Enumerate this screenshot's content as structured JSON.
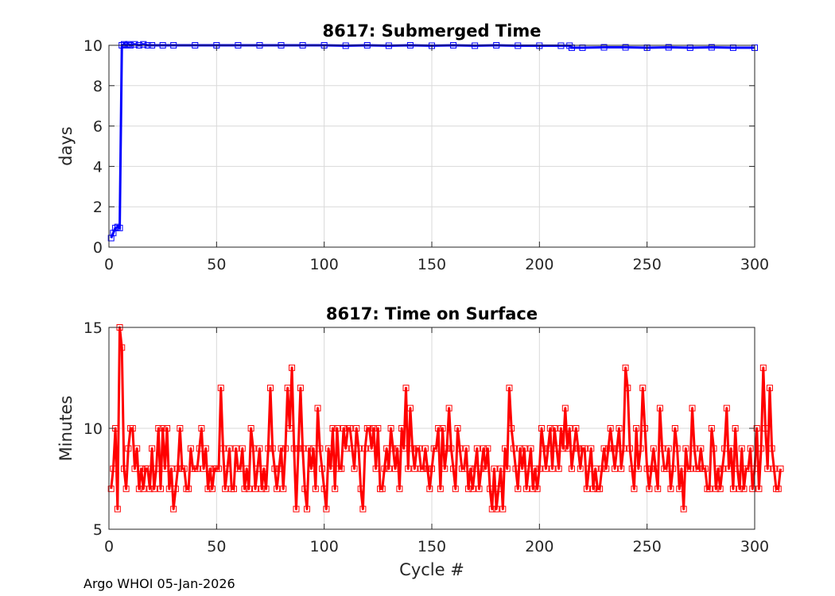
{
  "footer": "Argo WHOI 05-Jan-2026",
  "colors": {
    "submerged": "#0000ff",
    "surface": "#ff0000",
    "grid": "#d9d9d9",
    "axis": "#262626"
  },
  "chart_data": [
    {
      "type": "line",
      "title": "8617: Submerged Time",
      "xlabel": "",
      "ylabel": "days",
      "xlim": [
        0,
        300
      ],
      "ylim": [
        0,
        10
      ],
      "xticks": [
        0,
        50,
        100,
        150,
        200,
        250,
        300
      ],
      "yticks": [
        0,
        2,
        4,
        6,
        8,
        10
      ],
      "grid": true,
      "marker": "square",
      "series": [
        {
          "color": "#0000ff",
          "x": [
            1,
            2,
            3,
            4,
            5,
            6,
            7,
            8,
            9,
            10,
            12,
            14,
            16,
            18,
            20,
            25,
            30,
            40,
            50,
            60,
            70,
            80,
            90,
            100,
            110,
            120,
            130,
            140,
            150,
            160,
            170,
            180,
            190,
            200,
            210,
            214,
            215,
            220,
            230,
            240,
            250,
            260,
            270,
            280,
            290,
            300
          ],
          "y": [
            0.45,
            0.7,
            0.95,
            1.0,
            0.95,
            10.0,
            10.05,
            10.0,
            10.05,
            10.0,
            10.05,
            10.0,
            10.05,
            10.0,
            10.0,
            10.0,
            10.0,
            10.0,
            10.0,
            10.0,
            10.0,
            10.0,
            10.0,
            10.0,
            9.98,
            10.0,
            9.98,
            10.0,
            9.98,
            10.0,
            9.98,
            10.0,
            9.98,
            9.98,
            9.98,
            9.98,
            9.88,
            9.88,
            9.9,
            9.9,
            9.88,
            9.9,
            9.88,
            9.9,
            9.88,
            9.88
          ]
        }
      ]
    },
    {
      "type": "line",
      "title": "8617: Time on Surface",
      "xlabel": "Cycle #",
      "ylabel": "Minutes",
      "xlim": [
        0,
        300
      ],
      "ylim": [
        5,
        15
      ],
      "xticks": [
        0,
        50,
        100,
        150,
        200,
        250,
        300
      ],
      "yticks": [
        5,
        10,
        15
      ],
      "grid": true,
      "marker": "square",
      "series": [
        {
          "color": "#ff0000",
          "x_start": 1,
          "x_step": 1,
          "y": [
            7,
            8,
            10,
            6,
            15,
            14,
            8,
            7,
            9,
            10,
            10,
            8,
            9,
            7,
            8,
            7,
            8,
            8,
            7,
            9,
            7,
            8,
            10,
            7,
            10,
            8,
            10,
            7,
            8,
            6,
            7,
            8,
            10,
            8,
            8,
            7,
            7,
            9,
            8,
            8,
            8,
            9,
            10,
            8,
            9,
            7,
            8,
            7,
            8,
            8,
            8,
            12,
            9,
            7,
            8,
            9,
            7,
            7,
            9,
            8,
            8,
            9,
            7,
            8,
            7,
            10,
            9,
            7,
            8,
            9,
            7,
            8,
            7,
            9,
            12,
            9,
            8,
            7,
            8,
            9,
            7,
            9,
            12,
            10,
            13,
            9,
            6,
            9,
            12,
            9,
            7,
            6,
            9,
            8,
            9,
            7,
            11,
            9,
            8,
            7,
            6,
            9,
            8,
            10,
            7,
            10,
            8,
            8,
            10,
            9,
            10,
            10,
            9,
            8,
            10,
            9,
            7,
            6,
            9,
            10,
            10,
            9,
            10,
            8,
            10,
            7,
            7,
            8,
            9,
            8,
            10,
            9,
            8,
            9,
            7,
            10,
            9,
            12,
            8,
            11,
            9,
            8,
            9,
            9,
            8,
            8,
            9,
            8,
            7,
            8,
            9,
            9,
            10,
            7,
            10,
            8,
            9,
            11,
            9,
            8,
            7,
            10,
            9,
            8,
            8,
            9,
            7,
            8,
            7,
            8,
            9,
            7,
            8,
            9,
            8,
            9,
            7,
            6,
            8,
            6,
            7,
            8,
            6,
            9,
            8,
            12,
            10,
            9,
            8,
            7,
            9,
            8,
            9,
            7,
            8,
            9,
            7,
            8,
            7,
            8,
            10,
            9,
            8,
            9,
            10,
            8,
            10,
            9,
            8,
            10,
            9,
            11,
            9,
            10,
            8,
            9,
            10,
            9,
            8,
            9,
            9,
            7,
            8,
            9,
            7,
            8,
            7,
            7,
            8,
            9,
            8,
            9,
            10,
            9,
            8,
            9,
            10,
            8,
            9,
            13,
            12,
            9,
            8,
            7,
            10,
            8,
            9,
            12,
            10,
            8,
            7,
            8,
            9,
            8,
            7,
            11,
            9,
            8,
            8,
            9,
            7,
            8,
            10,
            9,
            7,
            8,
            6,
            9,
            8,
            8,
            11,
            9,
            8,
            8,
            9,
            8,
            8,
            7,
            7,
            10,
            9,
            7,
            8,
            7,
            8,
            9,
            11,
            8,
            9,
            7,
            10,
            8,
            7,
            9,
            7,
            8,
            8,
            9,
            7,
            8,
            10,
            7,
            9,
            13,
            10,
            8,
            12,
            9,
            8,
            7,
            7,
            8
          ]
        }
      ]
    }
  ]
}
